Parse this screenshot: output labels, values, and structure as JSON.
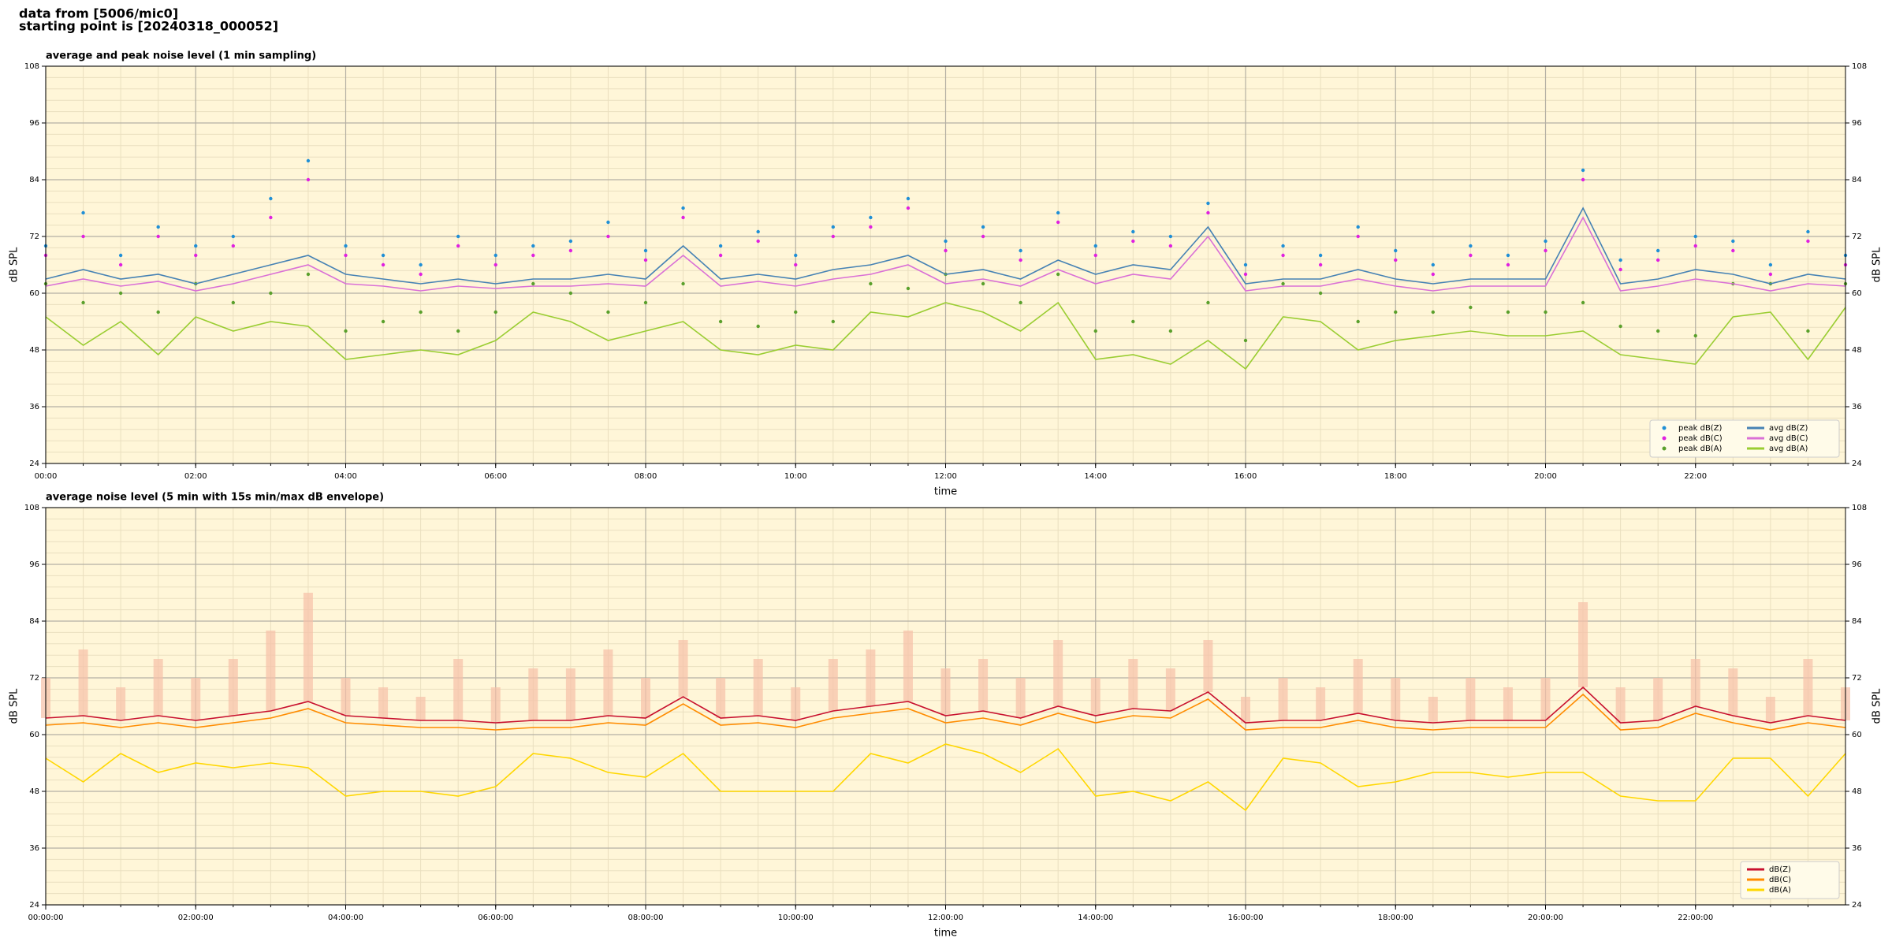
{
  "header": {
    "line1": "data from [5006/mic0]",
    "line2": "starting point is [20240318_000052]"
  },
  "chart_data": [
    {
      "type": "line",
      "title": "average and peak noise level (1 min sampling)",
      "x_label": "time",
      "y_label": "dB SPL",
      "xlim": [
        0,
        24
      ],
      "ylim": [
        24,
        108
      ],
      "yticks": [
        24,
        36,
        48,
        60,
        72,
        84,
        96,
        108
      ],
      "xticks": [
        {
          "value": 0,
          "label": "00:00"
        },
        {
          "value": 2,
          "label": "02:00"
        },
        {
          "value": 4,
          "label": "04:00"
        },
        {
          "value": 6,
          "label": "06:00"
        },
        {
          "value": 8,
          "label": "08:00"
        },
        {
          "value": 10,
          "label": "10:00"
        },
        {
          "value": 12,
          "label": "12:00"
        },
        {
          "value": 14,
          "label": "14:00"
        },
        {
          "value": 16,
          "label": "16:00"
        },
        {
          "value": 18,
          "label": "18:00"
        },
        {
          "value": 20,
          "label": "20:00"
        },
        {
          "value": 22,
          "label": "22:00"
        }
      ],
      "grid": true,
      "legend": "lower right",
      "x": [
        0,
        0.5,
        1,
        1.5,
        2,
        2.5,
        3,
        3.5,
        4,
        4.5,
        5,
        5.5,
        6,
        6.5,
        7,
        7.5,
        8,
        8.5,
        9,
        9.5,
        10,
        10.5,
        11,
        11.5,
        12,
        12.5,
        13,
        13.5,
        14,
        14.5,
        15,
        15.5,
        16,
        16.5,
        17,
        17.5,
        18,
        18.5,
        19,
        19.5,
        20,
        20.5,
        21,
        21.5,
        22,
        22.5,
        23,
        23.5,
        24
      ],
      "series": [
        {
          "name": "peak dB(Z)",
          "kind": "scatter",
          "color": "#1f8fd6",
          "values": [
            70,
            77,
            68,
            74,
            70,
            72,
            80,
            88,
            70,
            68,
            66,
            72,
            68,
            70,
            71,
            75,
            69,
            78,
            70,
            73,
            68,
            74,
            76,
            80,
            71,
            74,
            69,
            77,
            70,
            73,
            72,
            79,
            66,
            70,
            68,
            74,
            69,
            66,
            70,
            68,
            71,
            86,
            67,
            69,
            72,
            71,
            66,
            73,
            68
          ]
        },
        {
          "name": "peak dB(C)",
          "kind": "scatter",
          "color": "#e020e0",
          "values": [
            68,
            72,
            66,
            72,
            68,
            70,
            76,
            84,
            68,
            66,
            64,
            70,
            66,
            68,
            69,
            72,
            67,
            76,
            68,
            71,
            66,
            72,
            74,
            78,
            69,
            72,
            67,
            75,
            68,
            71,
            70,
            77,
            64,
            68,
            66,
            72,
            67,
            64,
            68,
            66,
            69,
            84,
            65,
            67,
            70,
            69,
            64,
            71,
            66
          ]
        },
        {
          "name": "peak dB(A)",
          "kind": "scatter",
          "color": "#5aa02c",
          "values": [
            62,
            58,
            60,
            56,
            62,
            58,
            60,
            64,
            52,
            54,
            56,
            52,
            56,
            62,
            60,
            56,
            58,
            62,
            54,
            53,
            56,
            54,
            62,
            61,
            64,
            62,
            58,
            64,
            52,
            54,
            52,
            58,
            50,
            62,
            60,
            54,
            56,
            56,
            57,
            56,
            56,
            58,
            53,
            52,
            51,
            62,
            62,
            52,
            62
          ]
        },
        {
          "name": "avg dB(Z)",
          "kind": "line",
          "color": "#4682b4",
          "values": [
            63,
            65,
            63,
            64,
            62,
            64,
            66,
            68,
            64,
            63,
            62,
            63,
            62,
            63,
            63,
            64,
            63,
            70,
            63,
            64,
            63,
            65,
            66,
            68,
            64,
            65,
            63,
            67,
            64,
            66,
            65,
            74,
            62,
            63,
            63,
            65,
            63,
            62,
            63,
            63,
            63,
            78,
            62,
            63,
            65,
            64,
            62,
            64,
            63
          ]
        },
        {
          "name": "avg dB(C)",
          "kind": "line",
          "color": "#da70d6",
          "values": [
            61.5,
            63,
            61.5,
            62.5,
            60.5,
            62,
            64,
            66,
            62,
            61.5,
            60.5,
            61.5,
            61,
            61.5,
            61.5,
            62,
            61.5,
            68,
            61.5,
            62.5,
            61.5,
            63,
            64,
            66,
            62,
            63,
            61.5,
            65,
            62,
            64,
            63,
            72,
            60.5,
            61.5,
            61.5,
            63,
            61.5,
            60.5,
            61.5,
            61.5,
            61.5,
            76,
            60.5,
            61.5,
            63,
            62,
            60.5,
            62,
            61.5
          ]
        },
        {
          "name": "avg dB(A)",
          "kind": "line",
          "color": "#9acd32",
          "values": [
            55,
            49,
            54,
            47,
            55,
            52,
            54,
            53,
            46,
            47,
            48,
            47,
            50,
            56,
            54,
            50,
            52,
            54,
            48,
            47,
            49,
            48,
            56,
            55,
            58,
            56,
            52,
            58,
            46,
            47,
            45,
            50,
            44,
            55,
            54,
            48,
            50,
            51,
            52,
            51,
            51,
            52,
            47,
            46,
            45,
            55,
            56,
            46,
            57
          ]
        }
      ]
    },
    {
      "type": "line",
      "title": "average noise level (5 min with 15s min/max dB envelope)",
      "x_label": "time",
      "y_label": "dB SPL",
      "xlim": [
        0,
        24
      ],
      "ylim": [
        24,
        108
      ],
      "yticks": [
        24,
        36,
        48,
        60,
        72,
        84,
        96,
        108
      ],
      "xticks": [
        {
          "value": 0,
          "label": "00:00:00"
        },
        {
          "value": 2,
          "label": "02:00:00"
        },
        {
          "value": 4,
          "label": "04:00:00"
        },
        {
          "value": 6,
          "label": "06:00:00"
        },
        {
          "value": 8,
          "label": "08:00:00"
        },
        {
          "value": 10,
          "label": "10:00:00"
        },
        {
          "value": 12,
          "label": "12:00:00"
        },
        {
          "value": 14,
          "label": "14:00:00"
        },
        {
          "value": 16,
          "label": "16:00:00"
        },
        {
          "value": 18,
          "label": "18:00:00"
        },
        {
          "value": 20,
          "label": "20:00:00"
        },
        {
          "value": 22,
          "label": "22:00:00"
        }
      ],
      "grid": true,
      "legend": "lower right",
      "x": [
        0,
        0.5,
        1,
        1.5,
        2,
        2.5,
        3,
        3.5,
        4,
        4.5,
        5,
        5.5,
        6,
        6.5,
        7,
        7.5,
        8,
        8.5,
        9,
        9.5,
        10,
        10.5,
        11,
        11.5,
        12,
        12.5,
        13,
        13.5,
        14,
        14.5,
        15,
        15.5,
        16,
        16.5,
        17,
        17.5,
        18,
        18.5,
        19,
        19.5,
        20,
        20.5,
        21,
        21.5,
        22,
        22.5,
        23,
        23.5,
        24
      ],
      "envelope": {
        "color": "#f6c0a8",
        "values": [
          72,
          78,
          70,
          76,
          72,
          76,
          82,
          90,
          72,
          70,
          68,
          76,
          70,
          74,
          74,
          78,
          72,
          80,
          72,
          76,
          70,
          76,
          78,
          82,
          74,
          76,
          72,
          80,
          72,
          76,
          74,
          80,
          68,
          72,
          70,
          76,
          72,
          68,
          72,
          70,
          72,
          88,
          70,
          72,
          76,
          74,
          68,
          76,
          70
        ]
      },
      "series": [
        {
          "name": "dB(Z)",
          "kind": "line",
          "color": "#c8102e",
          "values": [
            63.5,
            64,
            63,
            64,
            63,
            64,
            65,
            67,
            64,
            63.5,
            63,
            63,
            62.5,
            63,
            63,
            64,
            63.5,
            68,
            63.5,
            64,
            63,
            65,
            66,
            67,
            64,
            65,
            63.5,
            66,
            64,
            65.5,
            65,
            69,
            62.5,
            63,
            63,
            64.5,
            63,
            62.5,
            63,
            63,
            63,
            70,
            62.5,
            63,
            66,
            64,
            62.5,
            64,
            63
          ]
        },
        {
          "name": "dB(C)",
          "kind": "line",
          "color": "#ff8c00",
          "values": [
            62,
            62.5,
            61.5,
            62.5,
            61.5,
            62.5,
            63.5,
            65.5,
            62.5,
            62,
            61.5,
            61.5,
            61,
            61.5,
            61.5,
            62.5,
            62,
            66.5,
            62,
            62.5,
            61.5,
            63.5,
            64.5,
            65.5,
            62.5,
            63.5,
            62,
            64.5,
            62.5,
            64,
            63.5,
            67.5,
            61,
            61.5,
            61.5,
            63,
            61.5,
            61,
            61.5,
            61.5,
            61.5,
            68.5,
            61,
            61.5,
            64.5,
            62.5,
            61,
            62.5,
            61.5
          ]
        },
        {
          "name": "dB(A)",
          "kind": "line",
          "color": "#ffd700",
          "values": [
            55,
            50,
            56,
            52,
            54,
            53,
            54,
            53,
            47,
            48,
            48,
            47,
            49,
            56,
            55,
            52,
            51,
            56,
            48,
            48,
            48,
            48,
            56,
            54,
            58,
            56,
            52,
            57,
            47,
            48,
            46,
            50,
            44,
            55,
            54,
            49,
            50,
            52,
            52,
            51,
            52,
            52,
            47,
            46,
            46,
            55,
            55,
            47,
            56
          ]
        }
      ]
    }
  ]
}
